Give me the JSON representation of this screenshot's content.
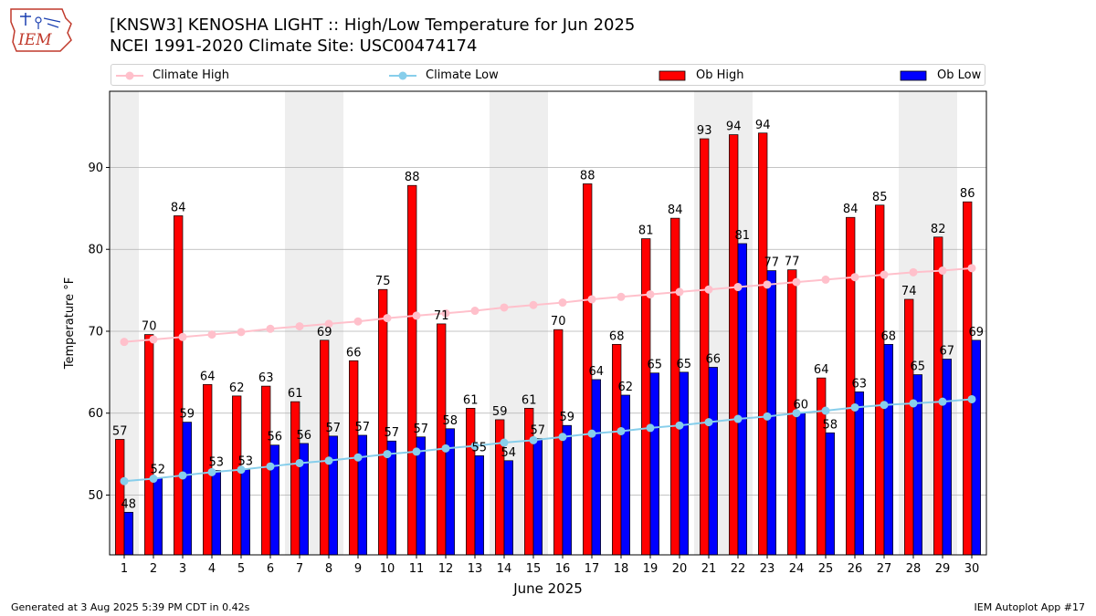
{
  "logo": {
    "text": "IEM",
    "icon": "iowa-state-outline-icon"
  },
  "title_line1": "[KNSW3] KENOSHA LIGHT :: High/Low Temperature for Jun 2025",
  "title_line2": "NCEI 1991-2020 Climate Site: USC00474174",
  "legend": [
    {
      "label": "Climate High",
      "kind": "line",
      "color": "#ffc0cb"
    },
    {
      "label": "Climate Low",
      "kind": "line",
      "color": "#87ceeb"
    },
    {
      "label": "Ob High",
      "kind": "bar",
      "color": "#ff0000"
    },
    {
      "label": "Ob Low",
      "kind": "bar",
      "color": "#0000ff"
    }
  ],
  "footer_left": "Generated at 3 Aug 2025 5:39 PM CDT in 0.42s",
  "footer_right": "IEM Autoplot App #17",
  "chart_data": {
    "type": "bar",
    "xlabel": "June 2025",
    "ylabel": "Temperature °F",
    "ylim": [
      42.7,
      99.3
    ],
    "yticks": [
      50,
      60,
      70,
      80,
      90
    ],
    "grid": true,
    "legend_position": "top",
    "weekend_shading_color": "#eeeeee",
    "weekend_days": [
      1,
      7,
      8,
      14,
      15,
      21,
      22,
      28,
      29
    ],
    "categories": [
      "1",
      "2",
      "3",
      "4",
      "5",
      "6",
      "7",
      "8",
      "9",
      "10",
      "11",
      "12",
      "13",
      "14",
      "15",
      "16",
      "17",
      "18",
      "19",
      "20",
      "21",
      "22",
      "23",
      "24",
      "25",
      "26",
      "27",
      "28",
      "29",
      "30"
    ],
    "series": [
      {
        "name": "Ob High",
        "kind": "bar",
        "color": "#ff0000",
        "values": [
          56.8,
          69.6,
          84.1,
          63.5,
          62.1,
          63.3,
          61.4,
          68.9,
          66.4,
          75.1,
          87.8,
          70.9,
          60.6,
          59.2,
          60.6,
          70.2,
          88.0,
          68.4,
          81.3,
          83.8,
          93.5,
          94.0,
          94.2,
          77.5,
          64.3,
          83.9,
          85.4,
          73.9,
          81.5,
          85.8
        ],
        "labels": [
          "57",
          "70",
          "84",
          "64",
          "62",
          "63",
          "61",
          "69",
          "66",
          "75",
          "88",
          "71",
          "61",
          "59",
          "61",
          "70",
          "88",
          "68",
          "81",
          "84",
          "93",
          "94",
          "94",
          "77",
          "64",
          "84",
          "85",
          "74",
          "82",
          "86"
        ]
      },
      {
        "name": "Ob Low",
        "kind": "bar",
        "color": "#0000ff",
        "values": [
          47.9,
          52.1,
          58.9,
          53.0,
          53.1,
          56.1,
          56.3,
          57.2,
          57.3,
          56.6,
          57.1,
          58.1,
          54.8,
          54.2,
          56.9,
          58.5,
          64.1,
          62.2,
          64.9,
          65.0,
          65.6,
          80.7,
          77.4,
          60.0,
          57.6,
          62.6,
          68.4,
          64.7,
          66.6,
          68.9
        ],
        "labels": [
          "48",
          "52",
          "59",
          "53",
          "53",
          "56",
          "56",
          "57",
          "57",
          "57",
          "57",
          "58",
          "55",
          "54",
          "57",
          "59",
          "64",
          "62",
          "65",
          "65",
          "66",
          "81",
          "77",
          "60",
          "58",
          "63",
          "68",
          "65",
          "67",
          "69"
        ]
      },
      {
        "name": "Climate High",
        "kind": "line",
        "color": "#ffc0cb",
        "values": [
          68.7,
          69.0,
          69.3,
          69.6,
          69.9,
          70.3,
          70.6,
          70.9,
          71.2,
          71.6,
          71.9,
          72.2,
          72.5,
          72.9,
          73.2,
          73.5,
          73.9,
          74.2,
          74.5,
          74.8,
          75.1,
          75.4,
          75.7,
          76.0,
          76.3,
          76.6,
          76.9,
          77.2,
          77.4,
          77.7
        ]
      },
      {
        "name": "Climate Low",
        "kind": "line",
        "color": "#87ceeb",
        "values": [
          51.7,
          52.0,
          52.4,
          52.8,
          53.1,
          53.5,
          53.9,
          54.2,
          54.6,
          55.0,
          55.3,
          55.7,
          56.0,
          56.4,
          56.7,
          57.1,
          57.5,
          57.8,
          58.2,
          58.5,
          58.9,
          59.3,
          59.6,
          60.0,
          60.3,
          60.7,
          61.0,
          61.2,
          61.4,
          61.7
        ]
      }
    ]
  }
}
